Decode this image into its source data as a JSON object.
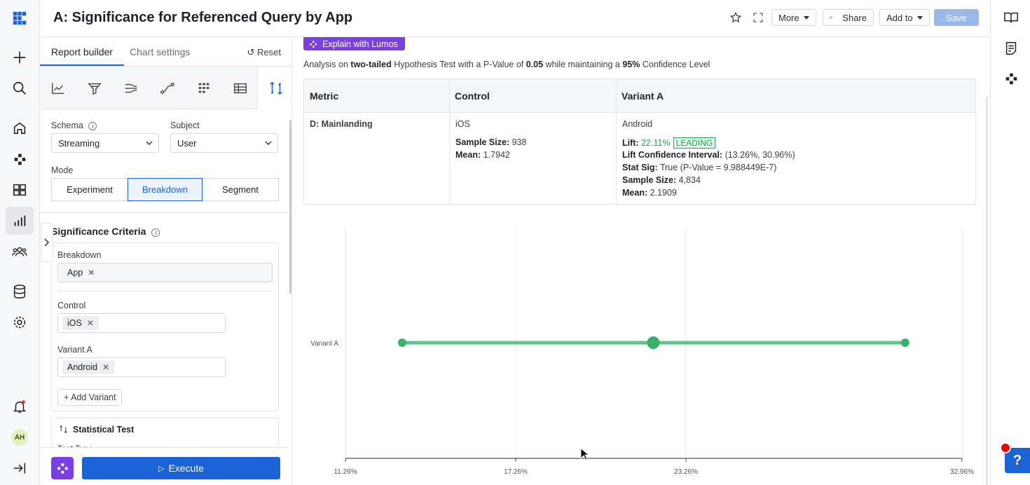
{
  "header": {
    "title": "A: Significance for Referenced Query by App",
    "more_label": "More",
    "share_label": "Share",
    "add_to_label": "Add to",
    "save_label": "Save"
  },
  "left_rail": {
    "avatar_initials": "AH",
    "icons": [
      "grid-logo-icon",
      "plus-icon",
      "search-icon",
      "home-icon",
      "lumos-icon",
      "dashboard-icon",
      "chart-icon",
      "users-icon",
      "database-icon",
      "settings-icon",
      "bell-icon",
      "collapse-rail-icon"
    ]
  },
  "panel": {
    "tab_report_builder": "Report builder",
    "tab_chart_settings": "Chart settings",
    "reset_label": "Reset",
    "schema_label": "Schema",
    "schema_value": "Streaming",
    "subject_label": "Subject",
    "subject_value": "User",
    "mode_label": "Mode",
    "mode_options": [
      "Experiment",
      "Breakdown",
      "Segment"
    ],
    "mode_selected": "Breakdown",
    "criteria_title": "Significance Criteria",
    "breakdown_label": "Breakdown",
    "breakdown_chip": "App",
    "control_label": "Control",
    "control_chip": "iOS",
    "variant_label": "Variant A",
    "variant_chip": "Android",
    "add_variant_label": "+ Add Variant",
    "stat_test_title": "Statistical Test",
    "test_type_label": "Test Type",
    "execute_label": "Execute"
  },
  "main": {
    "lumos_label": "Explain with Lumos",
    "analysis": {
      "prefix": "Analysis on ",
      "tail_type": "two-tailed",
      "middle": " Hypothesis Test with a P-Value of ",
      "p_value": "0.05",
      "middle2": " while maintaining a ",
      "confidence": "95%",
      "suffix": " Confidence Level"
    },
    "table": {
      "headers": [
        "Metric",
        "Control",
        "Variant A"
      ],
      "metric": "D: Mainlanding",
      "control": {
        "name": "iOS",
        "sample_size_label": "Sample Size:",
        "sample_size": "938",
        "mean_label": "Mean:",
        "mean": "1.7942"
      },
      "variant": {
        "name": "Android",
        "lift_label": "Lift:",
        "lift": "22.11%",
        "badge": "LEADING",
        "lci_label": "Lift Confidence Interval:",
        "lci": "(13.26%, 30.96%)",
        "stat_sig_label": "Stat Sig:",
        "stat_sig": "True (P-Value = 9.988449E-7)",
        "sample_size_label": "Sample Size:",
        "sample_size": "4,834",
        "mean_label": "Mean:",
        "mean": "2.1909"
      }
    }
  },
  "chart_data": {
    "type": "scatter",
    "title": "",
    "series": [
      {
        "name": "Variant A",
        "low": 13.26,
        "point": 22.11,
        "high": 30.96
      }
    ],
    "x_ticks": [
      "11.26%",
      "17.26%",
      "23.26%",
      "32.96%"
    ],
    "xlim": [
      11.26,
      32.96
    ],
    "color": "#5dc48a"
  }
}
